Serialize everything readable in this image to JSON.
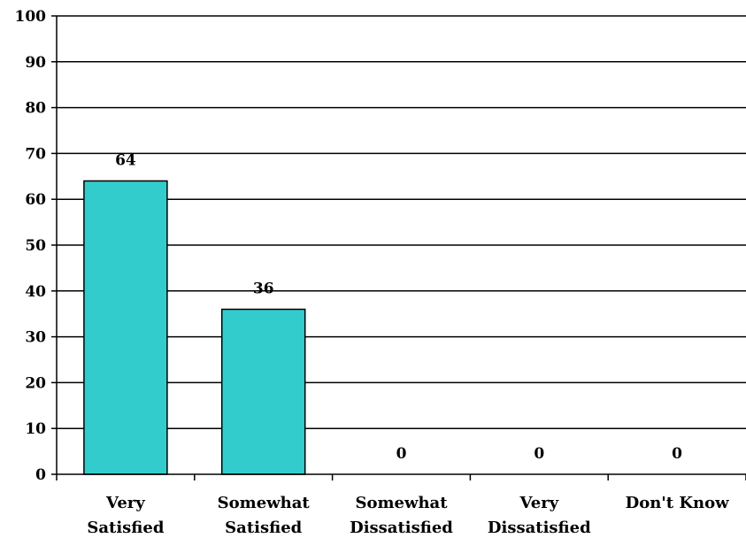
{
  "chart_data": {
    "type": "bar",
    "title": "",
    "xlabel": "",
    "ylabel": "",
    "categories": [
      [
        "Very",
        "Satisfied"
      ],
      [
        "Somewhat",
        "Satisfied"
      ],
      [
        "Somewhat",
        "Dissatisfied"
      ],
      [
        "Very",
        "Dissatisfied"
      ],
      [
        "Don't Know"
      ]
    ],
    "values": [
      64,
      36,
      0,
      0,
      0
    ],
    "ylim": [
      0,
      100
    ],
    "yticks": [
      0,
      10,
      20,
      30,
      40,
      50,
      60,
      70,
      80,
      90,
      100
    ],
    "grid": true,
    "legend": "none",
    "colors": {
      "bar": "#33CCCC",
      "bar_border": "#000000",
      "grid": "#000000",
      "axis": "#000000"
    }
  }
}
